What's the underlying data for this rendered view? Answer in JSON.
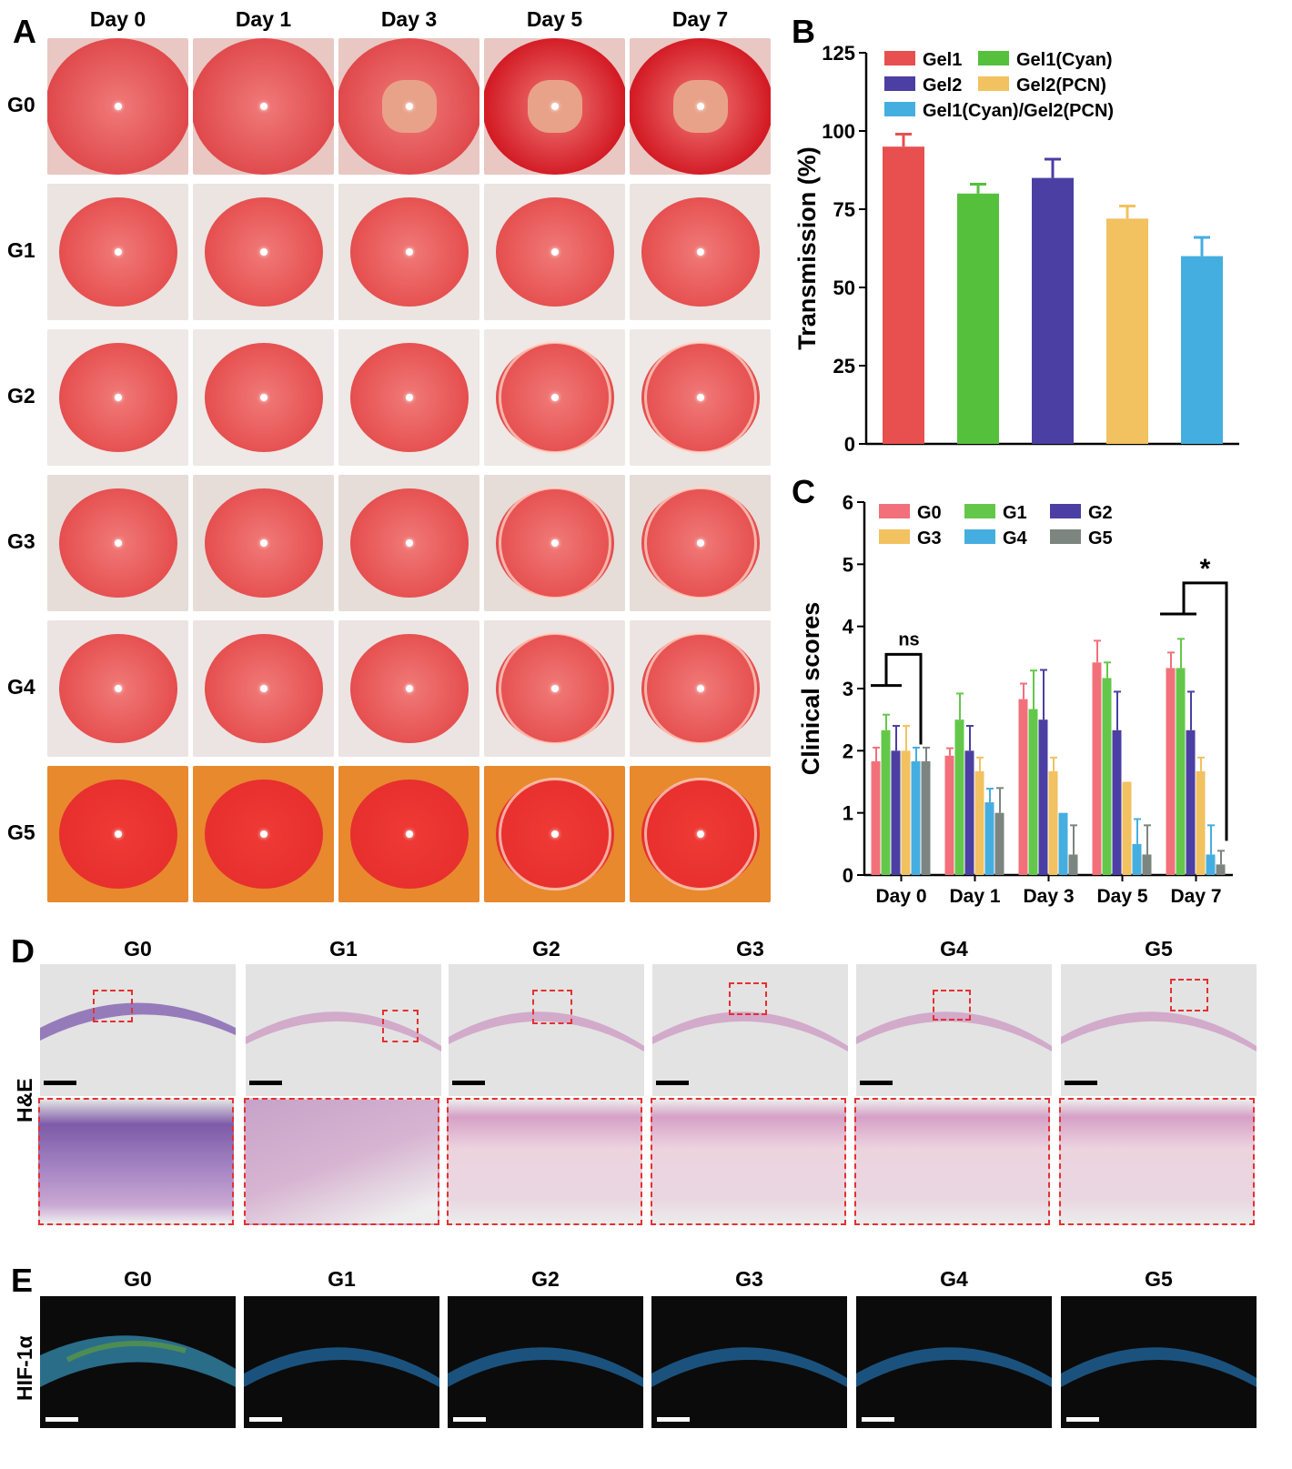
{
  "panels": {
    "A": {
      "letter": "A",
      "columns": [
        "Day 0",
        "Day 1",
        "Day 3",
        "Day 5",
        "Day 7"
      ],
      "rows": [
        "G0",
        "G1",
        "G2",
        "G3",
        "G4",
        "G5"
      ]
    },
    "B": {
      "letter": "B"
    },
    "C": {
      "letter": "C"
    },
    "D": {
      "letter": "D",
      "groups": [
        "G0",
        "G1",
        "G2",
        "G3",
        "G4",
        "G5"
      ],
      "stain_label": "H&E"
    },
    "E": {
      "letter": "E",
      "groups": [
        "G0",
        "G1",
        "G2",
        "G3",
        "G4",
        "G5"
      ],
      "marker_label": "HIF-1α"
    }
  },
  "chart_data": [
    {
      "type": "bar",
      "panel": "B",
      "ylabel": "Transmission (%)",
      "ylim": [
        0,
        125
      ],
      "yticks": [
        0,
        25,
        50,
        75,
        100,
        125
      ],
      "legend_position": "top",
      "categories": [
        "Gel1",
        "Gel1(Cyan)",
        "Gel2",
        "Gel2(PCN)",
        "Gel1(Cyan)/Gel2(PCN)"
      ],
      "legend": [
        "Gel1",
        "Gel1(Cyan)",
        "Gel2",
        "Gel2(PCN)",
        "Gel1(Cyan)/Gel2(PCN)"
      ],
      "values": [
        95,
        80,
        85,
        72,
        60
      ],
      "errors": [
        4,
        3,
        6,
        4,
        6
      ],
      "colors": [
        "#e8504f",
        "#55c03c",
        "#4b3fa3",
        "#f2c160",
        "#45aee0"
      ]
    },
    {
      "type": "bar",
      "panel": "C",
      "ylabel": "Clinical scores",
      "ylim": [
        0,
        6
      ],
      "yticks": [
        0,
        1,
        2,
        3,
        4,
        5,
        6
      ],
      "legend_position": "top-left",
      "categories": [
        "Day 0",
        "Day 1",
        "Day 3",
        "Day 5",
        "Day 7"
      ],
      "series": [
        {
          "name": "G0",
          "color": "#f2707a",
          "values": [
            1.83,
            1.92,
            2.83,
            3.42,
            3.33
          ],
          "errors": [
            0.22,
            0.12,
            0.25,
            0.35,
            0.25
          ]
        },
        {
          "name": "G1",
          "color": "#63c84a",
          "values": [
            2.33,
            2.5,
            2.67,
            3.17,
            3.33
          ],
          "errors": [
            0.25,
            0.42,
            0.62,
            0.25,
            0.47
          ]
        },
        {
          "name": "G2",
          "color": "#4b3fa3",
          "values": [
            2.0,
            2.0,
            2.5,
            2.33,
            2.33
          ],
          "errors": [
            0.4,
            0.4,
            0.8,
            0.62,
            0.62
          ]
        },
        {
          "name": "G3",
          "color": "#f2c160",
          "values": [
            2.0,
            1.67,
            1.67,
            1.5,
            1.67
          ],
          "errors": [
            0.4,
            0.22,
            0.22,
            0,
            0.22
          ]
        },
        {
          "name": "G4",
          "color": "#45aee0",
          "values": [
            1.83,
            1.17,
            1.0,
            0.5,
            0.33
          ],
          "errors": [
            0.22,
            0.22,
            0,
            0.4,
            0.47
          ]
        },
        {
          "name": "G5",
          "color": "#7c8580",
          "values": [
            1.83,
            1.0,
            0.33,
            0.33,
            0.17
          ],
          "errors": [
            0.22,
            0.4,
            0.47,
            0.47,
            0.22
          ]
        }
      ],
      "annotations": [
        "ns",
        "*"
      ]
    }
  ],
  "colors": {
    "dash_red": "#e53030"
  }
}
